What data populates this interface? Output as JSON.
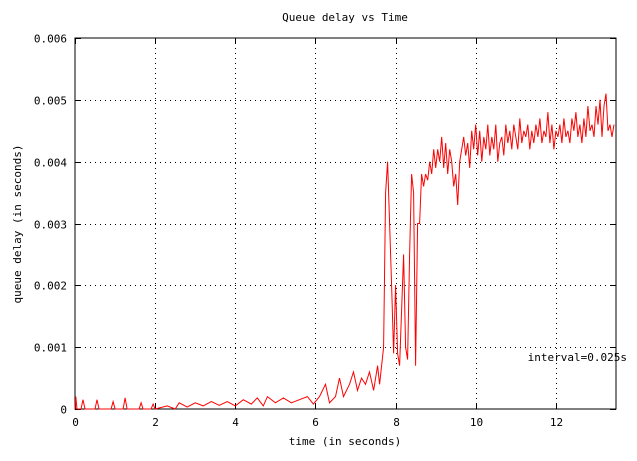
{
  "chart_data": {
    "type": "line",
    "title": "Queue delay vs Time",
    "xlabel": "time (in seconds)",
    "ylabel": "queue delay (in seconds)",
    "annotation": "interval=0.025s",
    "xlim": [
      0,
      13.5
    ],
    "ylim": [
      0,
      0.006
    ],
    "x_ticks": [
      {
        "value": 0,
        "label": "0"
      },
      {
        "value": 2,
        "label": "2"
      },
      {
        "value": 4,
        "label": "4"
      },
      {
        "value": 6,
        "label": "6"
      },
      {
        "value": 8,
        "label": "8"
      },
      {
        "value": 10,
        "label": "10"
      },
      {
        "value": 12,
        "label": "12"
      }
    ],
    "y_ticks": [
      {
        "value": 0,
        "label": "0"
      },
      {
        "value": 0.001,
        "label": "0.001"
      },
      {
        "value": 0.002,
        "label": "0.002"
      },
      {
        "value": 0.003,
        "label": "0.003"
      },
      {
        "value": 0.004,
        "label": "0.004"
      },
      {
        "value": 0.005,
        "label": "0.005"
      },
      {
        "value": 0.006,
        "label": "0.006"
      }
    ],
    "grid": true,
    "legend": "none",
    "series": [
      {
        "color": "#ff0000",
        "points": [
          [
            0.0,
            0.0
          ],
          [
            0.02,
            0.0002
          ],
          [
            0.05,
            0.0
          ],
          [
            0.15,
            0.0
          ],
          [
            0.2,
            0.00015
          ],
          [
            0.25,
            0.0
          ],
          [
            0.5,
            0.0
          ],
          [
            0.55,
            0.00015
          ],
          [
            0.6,
            0.0
          ],
          [
            0.9,
            0.0
          ],
          [
            0.95,
            0.00012
          ],
          [
            1.0,
            0.0
          ],
          [
            1.2,
            0.0
          ],
          [
            1.25,
            0.00018
          ],
          [
            1.3,
            0.0
          ],
          [
            1.6,
            0.0
          ],
          [
            1.65,
            0.0001
          ],
          [
            1.7,
            0.0
          ],
          [
            1.9,
            0.0
          ],
          [
            1.95,
            8e-05
          ],
          [
            2.0,
            0.0
          ],
          [
            2.3,
            5e-05
          ],
          [
            2.5,
            0.0
          ],
          [
            2.6,
            0.0001
          ],
          [
            2.8,
            3e-05
          ],
          [
            3.0,
            0.0001
          ],
          [
            3.2,
            5e-05
          ],
          [
            3.4,
            0.00012
          ],
          [
            3.6,
            6e-05
          ],
          [
            3.8,
            0.00012
          ],
          [
            4.0,
            5e-05
          ],
          [
            4.2,
            0.00015
          ],
          [
            4.4,
            8e-05
          ],
          [
            4.55,
            0.00018
          ],
          [
            4.7,
            5e-05
          ],
          [
            4.8,
            0.0002
          ],
          [
            5.0,
            0.0001
          ],
          [
            5.2,
            0.00018
          ],
          [
            5.4,
            0.0001
          ],
          [
            5.6,
            0.00015
          ],
          [
            5.8,
            0.0002
          ],
          [
            5.95,
            8e-05
          ],
          [
            6.1,
            0.0002
          ],
          [
            6.25,
            0.0004
          ],
          [
            6.35,
            0.0001
          ],
          [
            6.5,
            0.0002
          ],
          [
            6.6,
            0.0005
          ],
          [
            6.7,
            0.0002
          ],
          [
            6.85,
            0.0004
          ],
          [
            6.95,
            0.0006
          ],
          [
            7.05,
            0.0003
          ],
          [
            7.15,
            0.0005
          ],
          [
            7.25,
            0.0004
          ],
          [
            7.35,
            0.0006
          ],
          [
            7.45,
            0.0003
          ],
          [
            7.55,
            0.0007
          ],
          [
            7.6,
            0.0004
          ],
          [
            7.7,
            0.001
          ],
          [
            7.75,
            0.0035
          ],
          [
            7.8,
            0.004
          ],
          [
            7.85,
            0.003
          ],
          [
            7.9,
            0.002
          ],
          [
            7.95,
            0.0009
          ],
          [
            8.0,
            0.002
          ],
          [
            8.05,
            0.0009
          ],
          [
            8.1,
            0.0007
          ],
          [
            8.2,
            0.0025
          ],
          [
            8.25,
            0.001
          ],
          [
            8.3,
            0.0008
          ],
          [
            8.35,
            0.0025
          ],
          [
            8.4,
            0.0038
          ],
          [
            8.45,
            0.0035
          ],
          [
            8.5,
            0.0007
          ],
          [
            8.55,
            0.003
          ],
          [
            8.6,
            0.003
          ],
          [
            8.65,
            0.0038
          ],
          [
            8.7,
            0.0036
          ],
          [
            8.75,
            0.0038
          ],
          [
            8.8,
            0.0037
          ],
          [
            8.85,
            0.004
          ],
          [
            8.9,
            0.0038
          ],
          [
            8.95,
            0.0042
          ],
          [
            9.0,
            0.0039
          ],
          [
            9.05,
            0.0042
          ],
          [
            9.1,
            0.004
          ],
          [
            9.15,
            0.0044
          ],
          [
            9.2,
            0.0039
          ],
          [
            9.25,
            0.0043
          ],
          [
            9.3,
            0.0038
          ],
          [
            9.35,
            0.0042
          ],
          [
            9.4,
            0.004
          ],
          [
            9.45,
            0.0036
          ],
          [
            9.5,
            0.0038
          ],
          [
            9.55,
            0.0033
          ],
          [
            9.6,
            0.004
          ],
          [
            9.65,
            0.0042
          ],
          [
            9.7,
            0.0044
          ],
          [
            9.75,
            0.0041
          ],
          [
            9.8,
            0.0043
          ],
          [
            9.85,
            0.0039
          ],
          [
            9.9,
            0.0045
          ],
          [
            9.95,
            0.0042
          ],
          [
            10.0,
            0.0046
          ],
          [
            10.05,
            0.0041
          ],
          [
            10.1,
            0.0045
          ],
          [
            10.15,
            0.004
          ],
          [
            10.2,
            0.0044
          ],
          [
            10.25,
            0.0042
          ],
          [
            10.3,
            0.0046
          ],
          [
            10.35,
            0.0041
          ],
          [
            10.4,
            0.0044
          ],
          [
            10.45,
            0.0042
          ],
          [
            10.5,
            0.0046
          ],
          [
            10.55,
            0.004
          ],
          [
            10.6,
            0.0043
          ],
          [
            10.65,
            0.0044
          ],
          [
            10.7,
            0.0041
          ],
          [
            10.75,
            0.0046
          ],
          [
            10.8,
            0.0043
          ],
          [
            10.85,
            0.0045
          ],
          [
            10.9,
            0.0042
          ],
          [
            10.95,
            0.0046
          ],
          [
            11.0,
            0.0044
          ],
          [
            11.05,
            0.0042
          ],
          [
            11.1,
            0.0047
          ],
          [
            11.15,
            0.0043
          ],
          [
            11.2,
            0.0045
          ],
          [
            11.25,
            0.0044
          ],
          [
            11.3,
            0.0046
          ],
          [
            11.35,
            0.0042
          ],
          [
            11.4,
            0.0045
          ],
          [
            11.45,
            0.0043
          ],
          [
            11.5,
            0.0046
          ],
          [
            11.55,
            0.0044
          ],
          [
            11.6,
            0.0047
          ],
          [
            11.65,
            0.0043
          ],
          [
            11.7,
            0.0045
          ],
          [
            11.75,
            0.0044
          ],
          [
            11.8,
            0.0048
          ],
          [
            11.85,
            0.0043
          ],
          [
            11.9,
            0.0046
          ],
          [
            11.95,
            0.0042
          ],
          [
            12.0,
            0.0045
          ],
          [
            12.05,
            0.0044
          ],
          [
            12.1,
            0.0046
          ],
          [
            12.15,
            0.0043
          ],
          [
            12.2,
            0.0047
          ],
          [
            12.25,
            0.0044
          ],
          [
            12.3,
            0.0045
          ],
          [
            12.35,
            0.0043
          ],
          [
            12.4,
            0.0047
          ],
          [
            12.45,
            0.0045
          ],
          [
            12.5,
            0.0048
          ],
          [
            12.55,
            0.0044
          ],
          [
            12.6,
            0.0046
          ],
          [
            12.65,
            0.0043
          ],
          [
            12.7,
            0.0047
          ],
          [
            12.75,
            0.0044
          ],
          [
            12.8,
            0.0049
          ],
          [
            12.85,
            0.0045
          ],
          [
            12.9,
            0.0046
          ],
          [
            12.95,
            0.0044
          ],
          [
            13.0,
            0.0049
          ],
          [
            13.05,
            0.0046
          ],
          [
            13.1,
            0.005
          ],
          [
            13.15,
            0.0044
          ],
          [
            13.2,
            0.0049
          ],
          [
            13.25,
            0.0051
          ],
          [
            13.3,
            0.0045
          ],
          [
            13.35,
            0.0046
          ],
          [
            13.4,
            0.0044
          ],
          [
            13.45,
            0.0046
          ]
        ]
      }
    ]
  }
}
